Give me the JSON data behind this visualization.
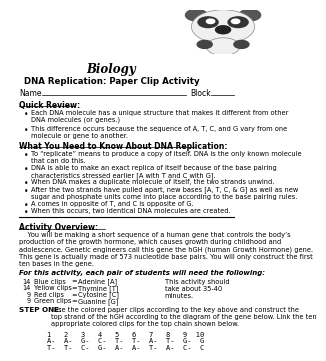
{
  "title": "Biology",
  "subtitle": "DNA Replication: Paper Clip Activity",
  "name_label": "Name",
  "block_label": "Block",
  "quick_review_header": "Quick Review:",
  "quick_review_bullets": [
    "Each DNA molecule has a unique structure that makes it different from other\nDNA molecules (or genes.)",
    "This difference occurs because the sequence of A, T, C, and G vary from one\nmolecule or gene to another."
  ],
  "what_header": "What You Need to Know About DNA Replication:",
  "what_bullets": [
    "To “replicate” means to produce a copy of itself. DNA is the only known molecule\nthat can do this.",
    "DNA is able to make an exact replica of itself because of the base pairing\ncharacteristics stressed earlier [A with T and C with G].",
    "When DNA makes a duplicate molecule of itself, the two strands unwind.",
    "After the two strands have pulled apart, new bases [A, T, C, & G] as well as new\nsugar and phosphate units come into place according to the base pairing rules.",
    "A comes in opposite of T, and C is opposite of G.",
    "When this occurs, two identical DNA molecules are created."
  ],
  "activity_header": "Activity Overview:",
  "activity_text": "    You will be making a short sequence of a human gene that controls the body’s\nproduction of the growth hormone, which causes growth during childhood and\nadolescence. Genetic engineers call this gene the hGH (human Growth Hormone) gene.\nThis gene is actually made of 573 nucleotide base pairs. You will only construct the first\nten bases in the gene.",
  "for_this_text": "For this activity, each pair of students will need the following:",
  "supplies": [
    [
      "14",
      "Blue clips",
      "=",
      "Adenine [A]"
    ],
    [
      "14",
      "Yellow clips",
      "=",
      "Thymine [T]"
    ],
    [
      "9",
      "Red clips",
      "=",
      "Cytosine [C]"
    ],
    [
      "9",
      "Green clips",
      "=",
      "Guanine [G]"
    ]
  ],
  "side_note": "This activity should\ntake about 35-40\nminutes.",
  "step_one_bold": "STEP ONE:",
  "step_one_text": " Use the colored paper clips according to the key above and construct the\ntop strand of the hGH according to the diagram of the gene below. Link the ten\nappropriate colored clips for the top chain shown below.",
  "numbers_row": "1   2   3   4   5   6   7   8   9  10",
  "top_row": "A-  A-  G-  C-  T-  T-  A-  T-  G-  G",
  "bottom_row": "T-  T-  C-  G-  A-  A-  T-  A-  C-  C",
  "bg_color": "#ffffff",
  "text_color": "#000000"
}
